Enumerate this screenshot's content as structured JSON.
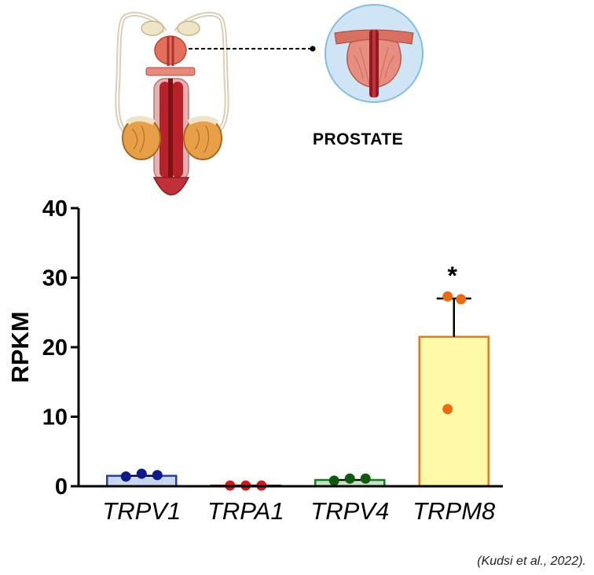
{
  "illustration": {
    "organ_label": "PROSTATE",
    "icon": "male-reproductive-anatomy-icon",
    "inset_icon": "prostate-cross-section-icon"
  },
  "citation": "(Kudsi et al., 2022).",
  "chart_data": {
    "type": "bar",
    "ylabel": "RPKM",
    "xlabel": "",
    "ylim": [
      0,
      40
    ],
    "yticks": [
      0,
      10,
      20,
      30,
      40
    ],
    "categories": [
      "TRPV1",
      "TRPA1",
      "TRPV4",
      "TRPM8"
    ],
    "values": [
      1.5,
      0.1,
      0.9,
      21.5
    ],
    "error_upper": [
      null,
      null,
      null,
      27.0
    ],
    "points": [
      [
        1.4,
        1.8,
        1.6
      ],
      [
        0.1,
        0.1,
        0.1
      ],
      [
        0.8,
        1.1,
        1.1
      ],
      [
        11.1,
        27.3,
        26.9
      ]
    ],
    "significance": [
      "",
      "",
      "",
      "*"
    ],
    "colors": {
      "fill": [
        "#c8d6f0",
        "#f4b8b8",
        "#c4e3c4",
        "#fff9a8"
      ],
      "edge": [
        "#2840a0",
        "#c01818",
        "#1e7a1e",
        "#e87820"
      ],
      "point": [
        "#0d1a8c",
        "#d41818",
        "#0f5a0f",
        "#ec6a10"
      ]
    }
  }
}
